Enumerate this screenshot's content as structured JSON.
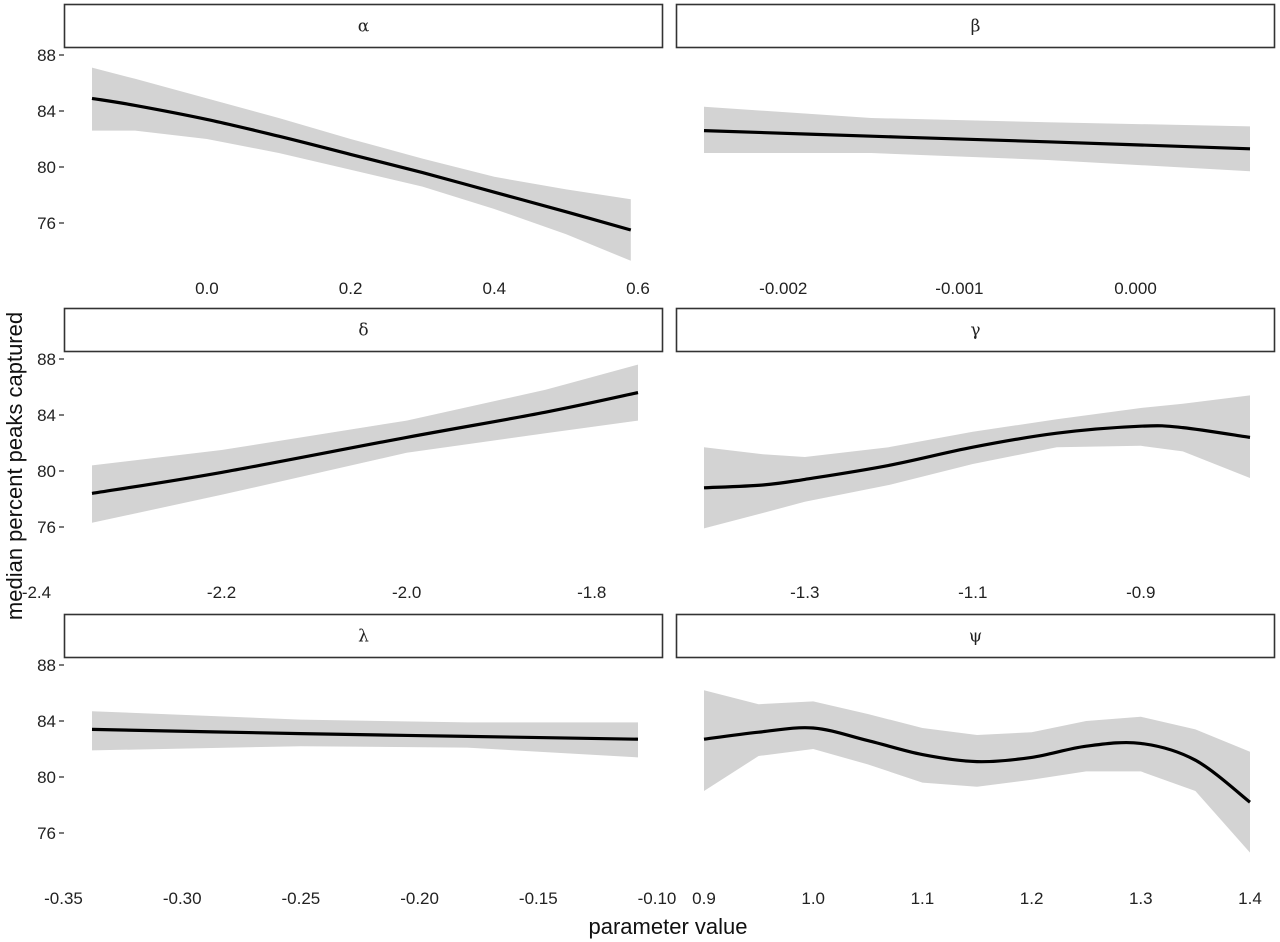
{
  "chart_data": {
    "type": "line",
    "xlabel": "parameter value",
    "ylabel": "median percent peaks captured",
    "panels": [
      {
        "label": "α",
        "xlim": [
          -0.16,
          0.6
        ],
        "ylim": [
          72.5,
          88.5
        ],
        "xticks": [
          {
            "v": 0.0,
            "t": "0.0"
          },
          {
            "v": 0.2,
            "t": "0.2"
          },
          {
            "v": 0.4,
            "t": "0.4"
          },
          {
            "v": 0.6,
            "t": "0.6"
          }
        ],
        "yticks": [
          {
            "v": 76,
            "t": "76"
          },
          {
            "v": 80,
            "t": "80"
          },
          {
            "v": 84,
            "t": "84"
          },
          {
            "v": 88,
            "t": "88"
          }
        ],
        "x": [
          -0.16,
          -0.1,
          0.0,
          0.1,
          0.2,
          0.3,
          0.4,
          0.5,
          0.59
        ],
        "y": [
          84.9,
          84.4,
          83.4,
          82.2,
          80.9,
          79.6,
          78.2,
          76.8,
          75.5
        ],
        "lower": [
          82.6,
          82.6,
          82.0,
          81.0,
          79.8,
          78.6,
          77.0,
          75.2,
          73.3
        ],
        "upper": [
          87.1,
          86.3,
          84.9,
          83.5,
          82.0,
          80.6,
          79.3,
          78.4,
          77.7
        ]
      },
      {
        "label": "β",
        "xlim": [
          -0.00245,
          0.00065
        ],
        "ylim": [
          72.5,
          88.5
        ],
        "xticks": [
          {
            "v": -0.002,
            "t": "-0.002"
          },
          {
            "v": -0.001,
            "t": "-0.001"
          },
          {
            "v": 0.0,
            "t": "0.000"
          }
        ],
        "yticks": [],
        "x": [
          -0.00245,
          -0.0015,
          -0.0005,
          0.00065
        ],
        "y": [
          82.6,
          82.2,
          81.8,
          81.3
        ],
        "lower": [
          81.0,
          81.0,
          80.5,
          79.7
        ],
        "upper": [
          84.3,
          83.5,
          83.2,
          82.9
        ]
      },
      {
        "label": "δ",
        "xlim": [
          -2.34,
          -1.75
        ],
        "ylim": [
          72.5,
          88.5
        ],
        "xticks": [
          {
            "v": -2.4,
            "t": "-2.4"
          },
          {
            "v": -2.2,
            "t": "-2.2"
          },
          {
            "v": -2.0,
            "t": "-2.0"
          },
          {
            "v": -1.8,
            "t": "-1.8"
          }
        ],
        "yticks": [
          {
            "v": 76,
            "t": "76"
          },
          {
            "v": 80,
            "t": "80"
          },
          {
            "v": 84,
            "t": "84"
          },
          {
            "v": 88,
            "t": "88"
          }
        ],
        "x": [
          -2.34,
          -2.2,
          -2.0,
          -1.85,
          -1.75
        ],
        "y": [
          78.4,
          79.9,
          82.4,
          84.2,
          85.6
        ],
        "lower": [
          76.3,
          78.3,
          81.3,
          82.7,
          83.6
        ],
        "upper": [
          80.4,
          81.5,
          83.6,
          85.8,
          87.6
        ]
      },
      {
        "label": "γ",
        "xlim": [
          -1.42,
          -0.77
        ],
        "ylim": [
          72.5,
          88.5
        ],
        "xticks": [
          {
            "v": -1.3,
            "t": "-1.3"
          },
          {
            "v": -1.1,
            "t": "-1.1"
          },
          {
            "v": -0.9,
            "t": "-0.9"
          }
        ],
        "yticks": [],
        "x": [
          -1.42,
          -1.35,
          -1.3,
          -1.2,
          -1.1,
          -1.0,
          -0.9,
          -0.85,
          -0.77
        ],
        "y": [
          78.8,
          79.0,
          79.4,
          80.4,
          81.7,
          82.7,
          83.2,
          83.1,
          82.4
        ],
        "lower": [
          75.9,
          77.0,
          77.8,
          79.0,
          80.5,
          81.7,
          81.8,
          81.4,
          79.5
        ],
        "upper": [
          81.7,
          81.2,
          81.0,
          81.7,
          82.8,
          83.7,
          84.5,
          84.8,
          85.4
        ]
      },
      {
        "label": "λ",
        "xlim": [
          -0.338,
          -0.108
        ],
        "ylim": [
          72.5,
          88.5
        ],
        "xticks": [
          {
            "v": -0.35,
            "t": "-0.35"
          },
          {
            "v": -0.3,
            "t": "-0.30"
          },
          {
            "v": -0.25,
            "t": "-0.25"
          },
          {
            "v": -0.2,
            "t": "-0.20"
          },
          {
            "v": -0.15,
            "t": "-0.15"
          },
          {
            "v": -0.1,
            "t": "-0.10"
          }
        ],
        "yticks": [
          {
            "v": 76,
            "t": "76"
          },
          {
            "v": 80,
            "t": "80"
          },
          {
            "v": 84,
            "t": "84"
          },
          {
            "v": 88,
            "t": "88"
          }
        ],
        "x": [
          -0.338,
          -0.25,
          -0.18,
          -0.108
        ],
        "y": [
          83.4,
          83.1,
          82.9,
          82.7
        ],
        "lower": [
          81.9,
          82.2,
          82.1,
          81.4
        ],
        "upper": [
          84.7,
          84.1,
          83.9,
          83.9
        ]
      },
      {
        "label": "ψ",
        "xlim": [
          0.9,
          1.4
        ],
        "ylim": [
          72.5,
          88.5
        ],
        "xticks": [
          {
            "v": 0.9,
            "t": "0.9"
          },
          {
            "v": 1.0,
            "t": "1.0"
          },
          {
            "v": 1.1,
            "t": "1.1"
          },
          {
            "v": 1.2,
            "t": "1.2"
          },
          {
            "v": 1.3,
            "t": "1.3"
          },
          {
            "v": 1.4,
            "t": "1.4"
          }
        ],
        "yticks": [],
        "x": [
          0.9,
          0.95,
          1.0,
          1.05,
          1.1,
          1.15,
          1.2,
          1.25,
          1.3,
          1.35,
          1.4
        ],
        "y": [
          82.7,
          83.2,
          83.5,
          82.6,
          81.6,
          81.1,
          81.4,
          82.2,
          82.4,
          81.2,
          78.2
        ],
        "lower": [
          79.0,
          81.5,
          82.0,
          80.9,
          79.6,
          79.3,
          79.8,
          80.4,
          80.4,
          79.0,
          74.6
        ],
        "upper": [
          86.2,
          85.2,
          85.4,
          84.5,
          83.5,
          83.0,
          83.2,
          84.0,
          84.3,
          83.4,
          81.8
        ]
      }
    ]
  }
}
